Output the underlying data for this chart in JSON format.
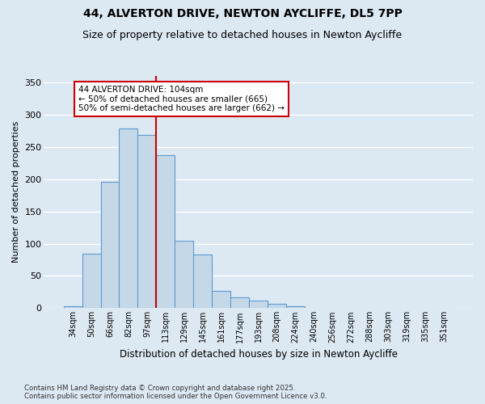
{
  "title_line1": "44, ALVERTON DRIVE, NEWTON AYCLIFFE, DL5 7PP",
  "title_line2": "Size of property relative to detached houses in Newton Aycliffe",
  "xlabel": "Distribution of detached houses by size in Newton Aycliffe",
  "ylabel": "Number of detached properties",
  "footnote": "Contains HM Land Registry data © Crown copyright and database right 2025.\nContains public sector information licensed under the Open Government Licence v3.0.",
  "categories": [
    "34sqm",
    "50sqm",
    "66sqm",
    "82sqm",
    "97sqm",
    "113sqm",
    "129sqm",
    "145sqm",
    "161sqm",
    "177sqm",
    "193sqm",
    "208sqm",
    "224sqm",
    "240sqm",
    "256sqm",
    "272sqm",
    "288sqm",
    "303sqm",
    "319sqm",
    "335sqm",
    "351sqm"
  ],
  "values": [
    3,
    84,
    196,
    278,
    268,
    237,
    104,
    83,
    27,
    17,
    12,
    7,
    3,
    1,
    0,
    0,
    1,
    0,
    0,
    1,
    1
  ],
  "bar_color": "#c5d8e8",
  "bar_edge_color": "#5b9bd5",
  "vline_x": 4.5,
  "vline_color": "#cc0000",
  "annotation_text": "44 ALVERTON DRIVE: 104sqm\n← 50% of detached houses are smaller (665)\n50% of semi-detached houses are larger (662) →",
  "annotation_box_color": "#ffffff",
  "annotation_box_edge": "#cc0000",
  "ylim": [
    0,
    360
  ],
  "yticks": [
    0,
    50,
    100,
    150,
    200,
    250,
    300,
    350
  ],
  "background_color": "#dce8f2",
  "plot_background": "#dce8f2",
  "grid_color": "#ffffff",
  "title_fontsize": 10,
  "subtitle_fontsize": 9
}
